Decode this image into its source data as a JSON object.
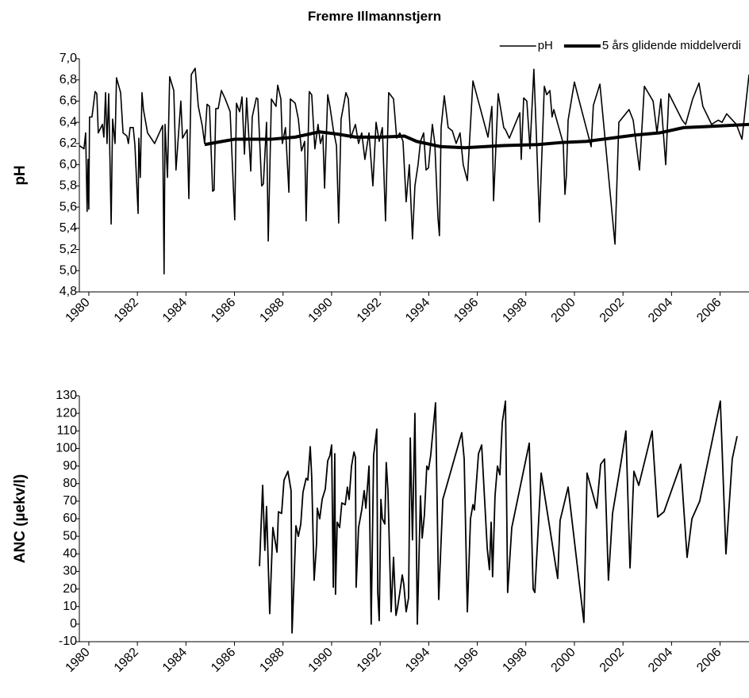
{
  "chart_data": [
    {
      "type": "line",
      "title": "Fremre Illmannstjern",
      "ylabel": "pH",
      "xlim": [
        1979.61,
        2007.19
      ],
      "xticks": [
        1980,
        1982,
        1984,
        1986,
        1988,
        1990,
        1992,
        1994,
        1996,
        1998,
        2000,
        2002,
        2004,
        2006
      ],
      "ylim": [
        4.8,
        7.0
      ],
      "yticks": [
        {
          "value": 4.8,
          "label": "4,8"
        },
        {
          "value": 5.0,
          "label": "5,0"
        },
        {
          "value": 5.2,
          "label": "5,2"
        },
        {
          "value": 5.4,
          "label": "5,4"
        },
        {
          "value": 5.6,
          "label": "5,6"
        },
        {
          "value": 5.8,
          "label": "5,8"
        },
        {
          "value": 6.0,
          "label": "6,0"
        },
        {
          "value": 6.2,
          "label": "6,2"
        },
        {
          "value": 6.4,
          "label": "6,4"
        },
        {
          "value": 6.6,
          "label": "6,6"
        },
        {
          "value": 6.8,
          "label": "6,8"
        },
        {
          "value": 7.0,
          "label": "7,0"
        }
      ],
      "legend": "top-right",
      "series": [
        {
          "name": "pH",
          "color": "#000000",
          "width": 1.6,
          "x": [
            1979.61,
            1979.8,
            1979.87,
            1979.93,
            1979.97,
            1980.0,
            1980.03,
            1980.13,
            1980.26,
            1980.33,
            1980.39,
            1980.56,
            1980.62,
            1980.69,
            1980.75,
            1980.82,
            1980.92,
            1980.98,
            1981.08,
            1981.14,
            1981.31,
            1981.41,
            1981.57,
            1981.63,
            1981.7,
            1981.83,
            1981.9,
            1982.03,
            1982.06,
            1982.12,
            1982.19,
            1982.25,
            1982.42,
            1982.71,
            1983.04,
            1983.1,
            1983.14,
            1983.24,
            1983.33,
            1983.5,
            1983.59,
            1983.79,
            1983.86,
            1984.05,
            1984.12,
            1984.22,
            1984.38,
            1984.51,
            1984.67,
            1984.77,
            1984.87,
            1984.97,
            1985.1,
            1985.16,
            1985.23,
            1985.33,
            1985.46,
            1985.62,
            1985.82,
            1986.01,
            1986.08,
            1986.21,
            1986.31,
            1986.41,
            1986.5,
            1986.67,
            1986.73,
            1986.9,
            1986.96,
            1987.12,
            1987.19,
            1987.32,
            1987.39,
            1987.52,
            1987.71,
            1987.78,
            1987.91,
            1987.97,
            1988.1,
            1988.24,
            1988.3,
            1988.5,
            1988.63,
            1988.76,
            1988.89,
            1988.95,
            1989.08,
            1989.18,
            1989.31,
            1989.44,
            1989.54,
            1989.64,
            1989.71,
            1989.84,
            1989.93,
            1990.07,
            1990.2,
            1990.29,
            1990.39,
            1990.59,
            1990.69,
            1990.78,
            1990.98,
            1991.11,
            1991.24,
            1991.37,
            1991.54,
            1991.7,
            1991.83,
            1991.96,
            1992.09,
            1992.22,
            1992.35,
            1992.55,
            1992.68,
            1992.81,
            1992.94,
            1993.07,
            1993.2,
            1993.33,
            1993.43,
            1993.56,
            1993.66,
            1993.79,
            1993.89,
            1993.99,
            1994.15,
            1994.25,
            1994.38,
            1994.44,
            1994.51,
            1994.64,
            1994.8,
            1994.97,
            1995.13,
            1995.29,
            1995.42,
            1995.59,
            1995.82,
            1996.44,
            1996.6,
            1996.67,
            1996.86,
            1997.09,
            1997.16,
            1997.32,
            1997.75,
            1997.81,
            1997.91,
            1998.04,
            1998.17,
            1998.33,
            1998.43,
            1998.56,
            1998.76,
            1998.86,
            1998.99,
            1999.08,
            1999.15,
            1999.54,
            1999.61,
            1999.67,
            1999.74,
            2000.0,
            2000.2,
            2000.69,
            2000.78,
            2001.05,
            2001.67,
            2001.83,
            2002.25,
            2002.42,
            2002.68,
            2002.88,
            2003.24,
            2003.4,
            2003.56,
            2003.76,
            2003.89,
            2004.22,
            2004.44,
            2004.58,
            2004.87,
            2005.13,
            2005.29,
            2005.65,
            2005.92,
            2006.08,
            2006.27,
            2006.67,
            2006.9,
            2007.19
          ],
          "values": [
            6.18,
            6.15,
            6.3,
            5.56,
            6.05,
            5.58,
            6.45,
            6.45,
            6.69,
            6.67,
            6.3,
            6.38,
            6.26,
            6.68,
            6.2,
            6.67,
            5.44,
            6.43,
            6.2,
            6.82,
            6.68,
            6.3,
            6.27,
            6.2,
            6.35,
            6.35,
            6.18,
            5.54,
            6.25,
            5.88,
            6.68,
            6.52,
            6.3,
            6.2,
            6.37,
            4.97,
            6.38,
            5.88,
            6.83,
            6.7,
            5.95,
            6.6,
            6.25,
            6.33,
            5.68,
            6.85,
            6.91,
            6.55,
            6.37,
            6.2,
            6.57,
            6.55,
            5.75,
            5.76,
            6.53,
            6.53,
            6.7,
            6.62,
            6.5,
            5.48,
            6.58,
            6.5,
            6.64,
            6.1,
            6.63,
            5.94,
            6.45,
            6.63,
            6.62,
            5.8,
            5.82,
            6.4,
            5.28,
            6.62,
            6.55,
            6.75,
            6.62,
            6.2,
            6.35,
            5.74,
            6.62,
            6.58,
            6.43,
            6.13,
            6.22,
            5.47,
            6.69,
            6.66,
            6.15,
            6.38,
            6.2,
            6.28,
            5.78,
            6.66,
            6.55,
            6.33,
            6.18,
            5.45,
            6.43,
            6.68,
            6.62,
            6.25,
            6.38,
            6.2,
            6.3,
            6.05,
            6.3,
            5.8,
            6.4,
            6.22,
            6.35,
            5.47,
            6.68,
            6.62,
            6.25,
            6.3,
            6.22,
            5.65,
            6.0,
            5.3,
            5.8,
            6.0,
            6.22,
            6.3,
            5.95,
            5.97,
            6.38,
            6.2,
            5.5,
            5.33,
            6.35,
            6.65,
            6.35,
            6.32,
            6.2,
            6.3,
            6.0,
            5.85,
            6.79,
            6.26,
            6.55,
            5.66,
            6.67,
            6.35,
            6.33,
            6.25,
            6.49,
            6.05,
            6.63,
            6.6,
            6.15,
            6.9,
            6.3,
            5.46,
            6.74,
            6.66,
            6.7,
            6.45,
            6.52,
            6.2,
            5.72,
            5.9,
            6.42,
            6.78,
            6.6,
            6.17,
            6.56,
            6.76,
            5.25,
            6.4,
            6.52,
            6.42,
            5.95,
            6.74,
            6.6,
            6.3,
            6.62,
            6.0,
            6.67,
            6.52,
            6.42,
            6.38,
            6.62,
            6.77,
            6.55,
            6.38,
            6.42,
            6.4,
            6.48,
            6.38,
            6.24,
            6.85
          ]
        },
        {
          "name": "5 års glidende middelverdi",
          "color": "#000000",
          "width": 4,
          "x": [
            1984.77,
            1985.5,
            1986,
            1987.5,
            1988.5,
            1989.5,
            1990.2,
            1991,
            1992,
            1993,
            1993.5,
            1994.5,
            1995.5,
            1997,
            1998.5,
            1999.5,
            2000.5,
            2001.5,
            2002.5,
            2003.5,
            2004.5,
            2005.5,
            2007.19
          ],
          "values": [
            6.19,
            6.22,
            6.24,
            6.24,
            6.26,
            6.31,
            6.29,
            6.26,
            6.26,
            6.27,
            6.22,
            6.17,
            6.16,
            6.18,
            6.19,
            6.21,
            6.22,
            6.25,
            6.28,
            6.3,
            6.35,
            6.36,
            6.38
          ]
        }
      ]
    },
    {
      "type": "line",
      "ylabel": "ANC (µekv/l)",
      "color": "#000000",
      "width": 1.8,
      "xlim": [
        1979.61,
        2007.19
      ],
      "xticks": [
        1980,
        1982,
        1984,
        1986,
        1988,
        1990,
        1992,
        1994,
        1996,
        1998,
        2000,
        2002,
        2004,
        2006
      ],
      "ylim": [
        -10,
        130
      ],
      "yticks": [
        -10,
        0,
        10,
        20,
        30,
        40,
        50,
        60,
        70,
        80,
        90,
        100,
        110,
        120,
        130
      ],
      "x": [
        1987.03,
        1987.16,
        1987.25,
        1987.32,
        1987.45,
        1987.58,
        1987.75,
        1987.81,
        1987.94,
        1988.04,
        1988.2,
        1988.33,
        1988.37,
        1988.46,
        1988.53,
        1988.63,
        1988.73,
        1988.82,
        1988.95,
        1989.02,
        1989.12,
        1989.18,
        1989.28,
        1989.38,
        1989.41,
        1989.51,
        1989.61,
        1989.74,
        1989.84,
        1989.93,
        1990.0,
        1990.07,
        1990.13,
        1990.16,
        1990.23,
        1990.33,
        1990.42,
        1990.56,
        1990.65,
        1990.72,
        1990.82,
        1990.92,
        1990.98,
        1991.01,
        1991.11,
        1991.24,
        1991.34,
        1991.41,
        1991.54,
        1991.63,
        1991.73,
        1991.86,
        1991.9,
        1991.96,
        1992.03,
        1992.09,
        1992.19,
        1992.25,
        1992.32,
        1992.45,
        1992.55,
        1992.65,
        1992.71,
        1992.81,
        1992.91,
        1992.97,
        1993.07,
        1993.17,
        1993.24,
        1993.33,
        1993.43,
        1993.53,
        1993.66,
        1993.73,
        1993.82,
        1993.92,
        1993.99,
        1994.08,
        1994.28,
        1994.41,
        1994.58,
        1995.36,
        1995.46,
        1995.59,
        1995.72,
        1995.82,
        1995.88,
        1996.05,
        1996.18,
        1996.41,
        1996.5,
        1996.57,
        1996.63,
        1996.73,
        1996.83,
        1996.93,
        1997.03,
        1997.16,
        1997.25,
        1997.42,
        1998.14,
        1998.3,
        1998.37,
        1998.63,
        1999.31,
        1999.41,
        1999.74,
        2000.39,
        2000.52,
        2000.92,
        2001.08,
        2001.24,
        2001.4,
        2001.57,
        2001.93,
        2002.12,
        2002.29,
        2002.45,
        2002.65,
        2003.2,
        2003.43,
        2003.69,
        2004.38,
        2004.64,
        2004.84,
        2005.16,
        2006.01,
        2006.24,
        2006.5,
        2006.7
      ],
      "values": [
        33,
        79,
        42,
        67,
        6,
        55,
        41,
        64,
        63,
        82,
        87,
        76,
        -5,
        28,
        56,
        50,
        57,
        75,
        83,
        82,
        101,
        84,
        25,
        46,
        66,
        60,
        71,
        77,
        93,
        96,
        102,
        21,
        97,
        17,
        58,
        55,
        69,
        68,
        78,
        71,
        90,
        98,
        95,
        21,
        55,
        65,
        76,
        66,
        90,
        0,
        96,
        111,
        18,
        2,
        71,
        60,
        57,
        92,
        76,
        7,
        38,
        5,
        9,
        18,
        28,
        23,
        7,
        15,
        106,
        48,
        120,
        0,
        73,
        49,
        62,
        90,
        88,
        96,
        126,
        14,
        71,
        109,
        94,
        7,
        60,
        68,
        65,
        97,
        102,
        43,
        31,
        58,
        27,
        73,
        90,
        85,
        115,
        127,
        18,
        55,
        103,
        20,
        18,
        86,
        26,
        59,
        78,
        1,
        86,
        66,
        91,
        94,
        25,
        63,
        93,
        110,
        32,
        87,
        79,
        110,
        61,
        64,
        91,
        38,
        60,
        70,
        127,
        40,
        94,
        107
      ]
    }
  ]
}
